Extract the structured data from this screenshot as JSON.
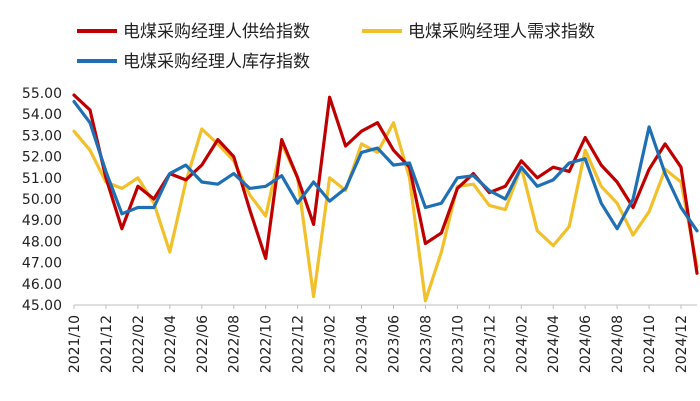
{
  "chart_data": {
    "type": "line",
    "title": "",
    "xlabel": "",
    "ylabel": "",
    "ylim": [
      45.0,
      55.0
    ],
    "yticks": [
      "55.00",
      "54.00",
      "53.00",
      "52.00",
      "51.00",
      "50.00",
      "49.00",
      "48.00",
      "47.00",
      "46.00",
      "45.00"
    ],
    "xlim": [
      "2021-10",
      "2025-01"
    ],
    "xticks": [
      "2021/10",
      "2021/12",
      "2022/02",
      "2022/04",
      "2022/06",
      "2022/08",
      "2022/10",
      "2022/12",
      "2023/02",
      "2023/04",
      "2023/06",
      "2023/08",
      "2023/10",
      "2023/12",
      "2024/02",
      "2024/04",
      "2024/06",
      "2024/08",
      "2024/10",
      "2024/12"
    ],
    "grid": false,
    "legend": "top",
    "series": [
      {
        "name": "电煤采购经理人供给指数",
        "color": "#c00000",
        "x": [
          "2021-10",
          "2021-11",
          "2021-12",
          "2022-01",
          "2022-02",
          "2022-03",
          "2022-04",
          "2022-05",
          "2022-06",
          "2022-07",
          "2022-08",
          "2022-09",
          "2022-10",
          "2022-11",
          "2022-12",
          "2023-01",
          "2023-02",
          "2023-03",
          "2023-04",
          "2023-05",
          "2023-06",
          "2023-07",
          "2023-08",
          "2023-09",
          "2023-10",
          "2023-11",
          "2023-12",
          "2024-01",
          "2024-02",
          "2024-03",
          "2024-04",
          "2024-05",
          "2024-06",
          "2024-07",
          "2024-08",
          "2024-09",
          "2024-10",
          "2024-11",
          "2024-12",
          "2025-01"
        ],
        "y": [
          54.9,
          54.2,
          51.0,
          48.6,
          50.6,
          50.0,
          51.2,
          50.9,
          51.6,
          52.8,
          52.0,
          49.5,
          47.2,
          52.8,
          51.0,
          48.8,
          54.8,
          52.5,
          53.2,
          53.6,
          52.3,
          51.5,
          47.9,
          48.4,
          50.5,
          51.2,
          50.3,
          50.6,
          51.8,
          51.0,
          51.5,
          51.3,
          52.9,
          51.6,
          50.8,
          49.6,
          51.4,
          52.6,
          51.5,
          46.5
        ]
      },
      {
        "name": "电煤采购经理人需求指数",
        "color": "#f2c02a",
        "x": [
          "2021-10",
          "2021-11",
          "2021-12",
          "2022-01",
          "2022-02",
          "2022-03",
          "2022-04",
          "2022-05",
          "2022-06",
          "2022-07",
          "2022-08",
          "2022-09",
          "2022-10",
          "2022-11",
          "2022-12",
          "2023-01",
          "2023-02",
          "2023-03",
          "2023-04",
          "2023-05",
          "2023-06",
          "2023-07",
          "2023-08",
          "2023-09",
          "2023-10",
          "2023-11",
          "2023-12",
          "2024-01",
          "2024-02",
          "2024-03",
          "2024-04",
          "2024-05",
          "2024-06",
          "2024-07",
          "2024-08",
          "2024-09",
          "2024-10",
          "2024-11",
          "2024-12",
          "2025-01"
        ],
        "y": [
          53.2,
          52.3,
          50.8,
          50.5,
          51.0,
          49.8,
          47.5,
          50.8,
          53.3,
          52.6,
          51.8,
          50.2,
          49.2,
          52.6,
          51.0,
          45.4,
          51.0,
          50.4,
          52.6,
          52.2,
          53.6,
          51.0,
          45.2,
          47.5,
          50.6,
          50.7,
          49.7,
          49.5,
          51.5,
          48.5,
          47.8,
          48.7,
          52.3,
          50.6,
          49.8,
          48.3,
          49.4,
          51.4,
          50.8,
          46.8
        ]
      },
      {
        "name": "电煤采购经理人库存指数",
        "color": "#1f6fb5",
        "x": [
          "2021-10",
          "2021-11",
          "2021-12",
          "2022-01",
          "2022-02",
          "2022-03",
          "2022-04",
          "2022-05",
          "2022-06",
          "2022-07",
          "2022-08",
          "2022-09",
          "2022-10",
          "2022-11",
          "2022-12",
          "2023-01",
          "2023-02",
          "2023-03",
          "2023-04",
          "2023-05",
          "2023-06",
          "2023-07",
          "2023-08",
          "2023-09",
          "2023-10",
          "2023-11",
          "2023-12",
          "2024-01",
          "2024-02",
          "2024-03",
          "2024-04",
          "2024-05",
          "2024-06",
          "2024-07",
          "2024-08",
          "2024-09",
          "2024-10",
          "2024-11",
          "2024-12",
          "2025-01"
        ],
        "y": [
          54.6,
          53.6,
          51.3,
          49.3,
          49.6,
          49.6,
          51.2,
          51.6,
          50.8,
          50.7,
          51.2,
          50.5,
          50.6,
          51.1,
          49.8,
          50.8,
          49.9,
          50.5,
          52.2,
          52.4,
          51.6,
          51.7,
          49.6,
          49.8,
          51.0,
          51.1,
          50.4,
          50.0,
          51.5,
          50.6,
          50.9,
          51.7,
          51.9,
          49.8,
          48.6,
          50.0,
          53.4,
          51.2,
          49.6,
          48.5
        ]
      }
    ]
  }
}
